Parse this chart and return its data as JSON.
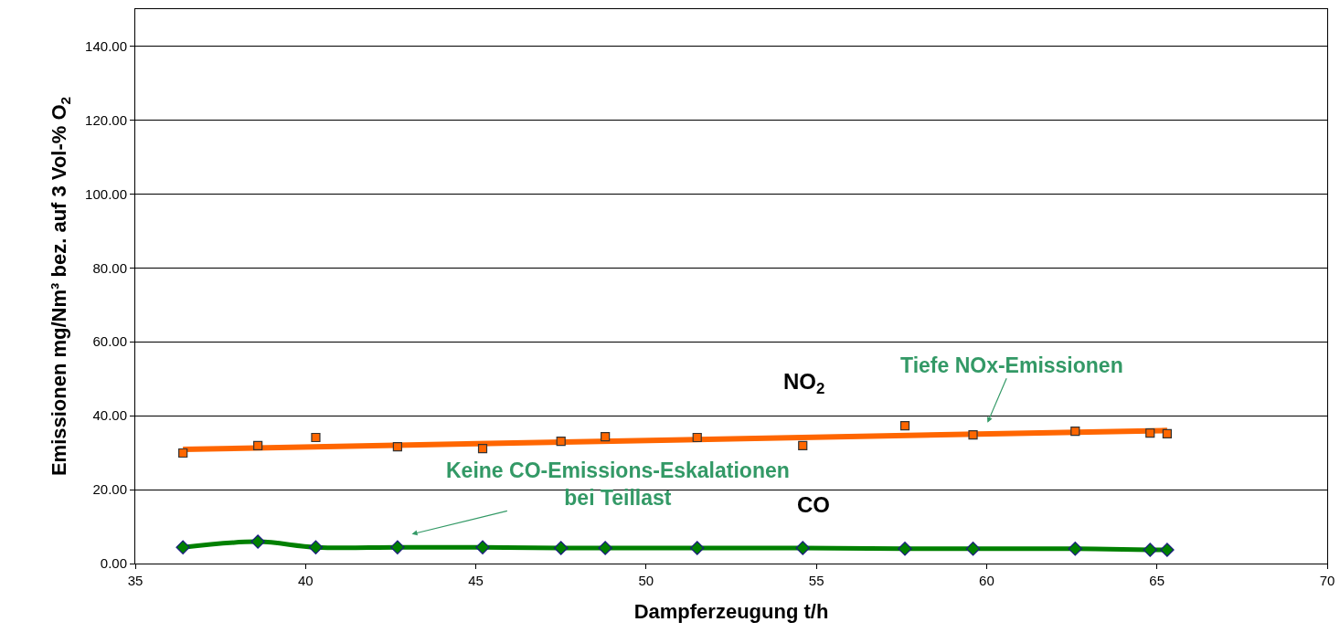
{
  "chart_data": {
    "type": "scatter",
    "xlabel": "Dampferzeugung t/h",
    "ylabel": "Emissionen mg/Nm³ bez. auf 3 Vol-% O$_{2}$",
    "xlim": [
      35,
      70
    ],
    "xticks": [
      35,
      40,
      45,
      50,
      55,
      60,
      65,
      70
    ],
    "ylim": [
      0,
      150
    ],
    "yticks": [
      {
        "value": 0,
        "label": "0.00"
      },
      {
        "value": 20,
        "label": "20.00"
      },
      {
        "value": 40,
        "label": "40.00"
      },
      {
        "value": 60,
        "label": "60.00"
      },
      {
        "value": 80,
        "label": "80.00"
      },
      {
        "value": 100,
        "label": "100.00"
      },
      {
        "value": 120,
        "label": "120.00"
      },
      {
        "value": 140,
        "label": "140.00"
      }
    ],
    "grid": "y",
    "x": [
      36.4,
      38.6,
      40.3,
      42.7,
      45.2,
      47.5,
      48.8,
      51.5,
      54.6,
      57.6,
      59.6,
      62.6,
      64.8,
      65.3
    ],
    "series": [
      {
        "type": "line",
        "color": "#ff6600",
        "marker": "none",
        "x": [
          36.4,
          65.3
        ],
        "values": [
          30.9,
          36.0
        ]
      },
      {
        "color": "#ff6600",
        "marker": "square",
        "values": [
          29.9,
          31.9,
          34.1,
          31.6,
          31.1,
          33.1,
          34.3,
          34.1,
          31.9,
          37.3,
          34.8,
          35.8,
          35.3,
          35.1
        ]
      },
      {
        "type": "line",
        "color": "#008000",
        "marker": "diamond",
        "values": [
          4.4,
          5.9,
          4.4,
          4.4,
          4.4,
          4.2,
          4.2,
          4.2,
          4.2,
          4.0,
          4.0,
          4.0,
          3.7,
          3.7
        ]
      }
    ],
    "annotations": [
      "NO$_{2}$",
      "CO",
      "Tiefe NOx-Emissionen",
      "Keine CO-Emissions-Eskalationen\nbei Teillast"
    ]
  }
}
